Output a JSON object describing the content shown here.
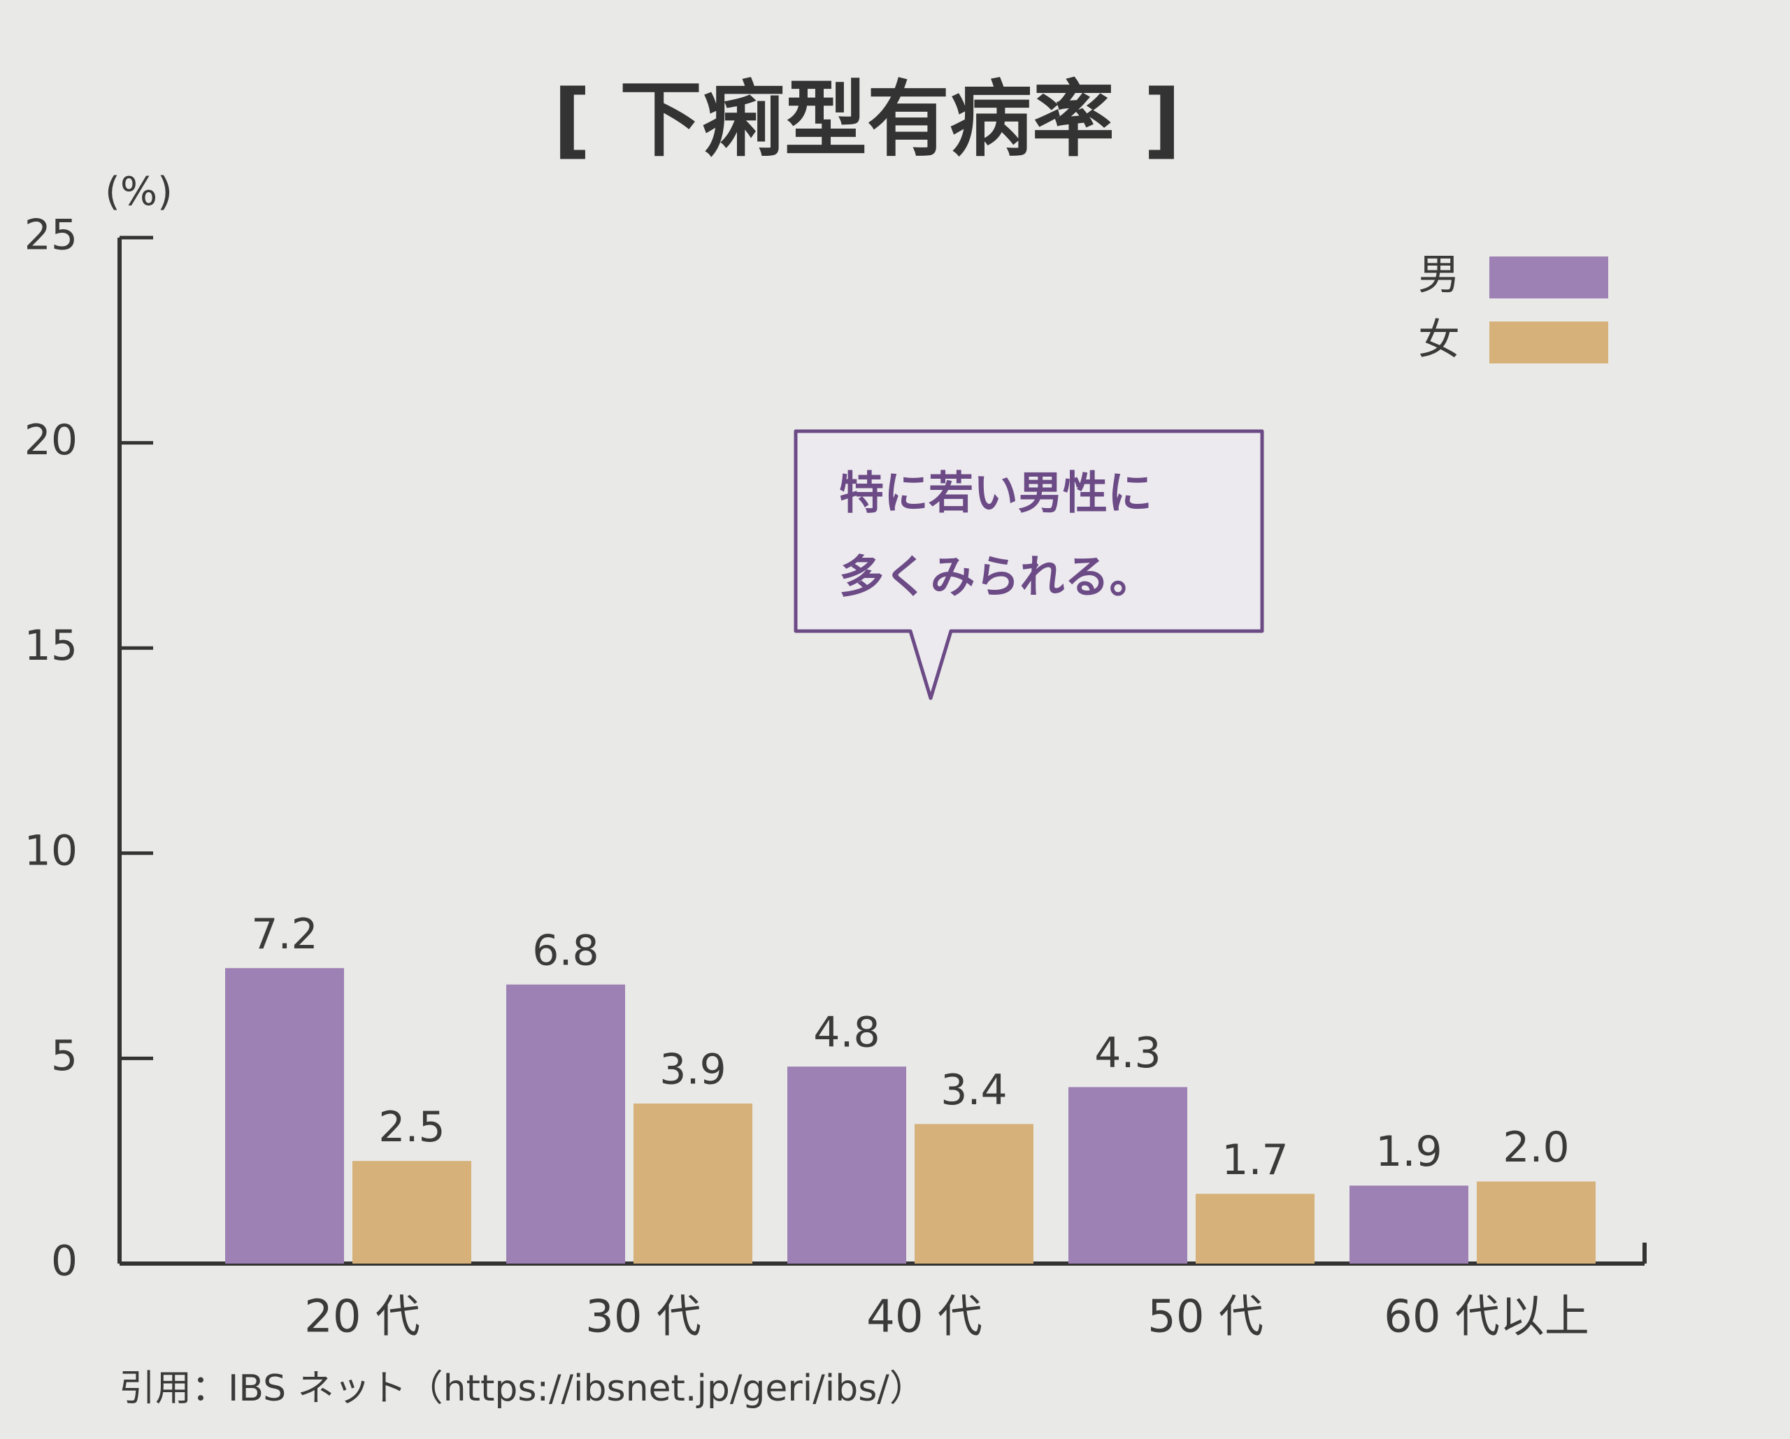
{
  "chart_data": {
    "type": "bar",
    "title": "[ 下痢型有病率 ]",
    "y_unit": "(%)",
    "categories": [
      "20 代",
      "30 代",
      "40 代",
      "50 代",
      "60 代以上"
    ],
    "series": [
      {
        "name": "男",
        "color": "#9d80b4",
        "values": [
          7.2,
          6.8,
          4.8,
          4.3,
          1.9
        ],
        "value_labels": [
          "7.2",
          "6.8",
          "4.8",
          "4.3",
          "1.9"
        ]
      },
      {
        "name": "女",
        "color": "#d6b27a",
        "values": [
          2.5,
          3.9,
          3.4,
          1.7,
          2.0
        ],
        "value_labels": [
          "2.5",
          "3.9",
          "3.4",
          "1.7",
          "2.0"
        ]
      }
    ],
    "ylim": [
      0,
      25
    ],
    "yticks": [
      0,
      5,
      10,
      15,
      20,
      25
    ],
    "legend": "top-right",
    "annotation": [
      "特に若い男性に",
      "多くみられる。"
    ],
    "source": "引用：IBS ネット（https://ibsnet.jp/geri/ibs/）"
  }
}
